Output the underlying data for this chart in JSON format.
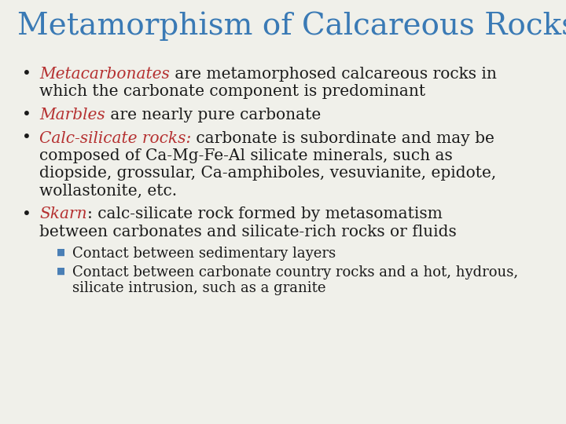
{
  "title": "Metamorphism of Calcareous Rocks",
  "title_color": "#3a7ab5",
  "title_fontsize": 28,
  "background_color": "#f0f0ea",
  "red_color": "#b53030",
  "blue_color": "#4a7fb5",
  "black_color": "#1a1a1a",
  "body_fontsize": 14.5,
  "sub_fontsize": 13.0,
  "items": [
    {
      "keyword": "Metacarbonates",
      "kw_italic": true,
      "rest": " are metamorphosed calcareous rocks in\nwhich the carbonate component is predominant",
      "lines": 2
    },
    {
      "keyword": "Marbles",
      "kw_italic": true,
      "rest": " are nearly pure carbonate",
      "lines": 1
    },
    {
      "keyword": "Calc-silicate rocks:",
      "kw_italic": true,
      "rest": " carbonate is subordinate and may be\ncomposed of Ca-Mg-Fe-Al silicate minerals, such as\ndiopside, grossular, Ca-amphiboles, vesuvianite, epidote,\nwollastonite, etc.",
      "lines": 4
    },
    {
      "keyword": "Skarn",
      "kw_italic": true,
      "rest": ": calc-silicate rock formed by metasomatism\nbetween carbonates and silicate-rich rocks or fluids",
      "lines": 2
    }
  ],
  "subitems": [
    {
      "text": "Contact between sedimentary layers",
      "lines": 1
    },
    {
      "text": "Contact between carbonate country rocks and a hot, hydrous,\nsilicate intrusion, such as a granite",
      "lines": 2
    }
  ],
  "bullet_char": "•",
  "sub_bullet_char": "■"
}
